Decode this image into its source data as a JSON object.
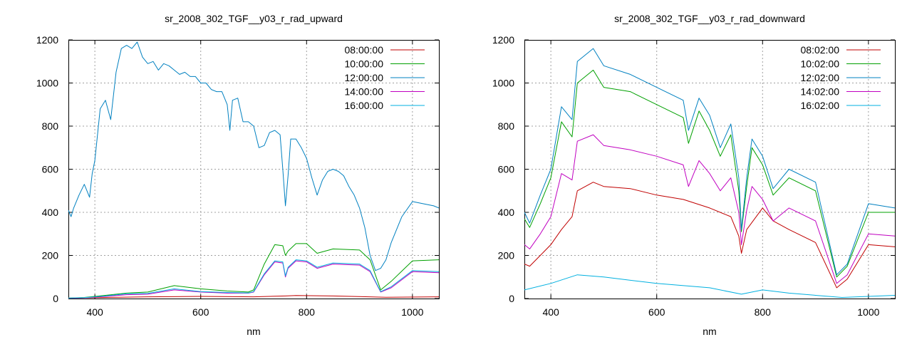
{
  "chart_data": [
    {
      "type": "line",
      "title": "sr_2008_302_TGF__y03_r_rad_upward",
      "xlabel": "nm",
      "ylabel": "",
      "xlim": [
        350,
        1050
      ],
      "ylim": [
        0,
        1200
      ],
      "xticks": [
        400,
        600,
        800,
        1000
      ],
      "yticks": [
        0,
        200,
        400,
        600,
        800,
        1000,
        1200
      ],
      "grid": true,
      "legend_position": "top-right",
      "series": [
        {
          "name": "08:00:00",
          "color": "#c00000",
          "x": [
            350,
            400,
            500,
            600,
            700,
            760,
            780,
            850,
            950,
            1050
          ],
          "y": [
            2,
            4,
            8,
            10,
            8,
            12,
            14,
            12,
            6,
            8
          ]
        },
        {
          "name": "10:00:00",
          "color": "#00a000",
          "x": [
            350,
            380,
            420,
            460,
            500,
            550,
            600,
            650,
            690,
            700,
            720,
            740,
            755,
            760,
            765,
            780,
            800,
            820,
            850,
            900,
            920,
            940,
            960,
            1000,
            1050
          ],
          "y": [
            2,
            5,
            15,
            25,
            30,
            60,
            45,
            35,
            30,
            40,
            160,
            250,
            245,
            200,
            220,
            255,
            255,
            210,
            230,
            225,
            180,
            40,
            80,
            175,
            180
          ]
        },
        {
          "name": "12:00:00",
          "color": "#0080c0",
          "x": [
            350,
            355,
            360,
            370,
            380,
            390,
            395,
            400,
            410,
            420,
            430,
            440,
            450,
            460,
            470,
            480,
            490,
            500,
            510,
            520,
            530,
            540,
            550,
            560,
            570,
            580,
            590,
            600,
            610,
            620,
            630,
            640,
            650,
            655,
            660,
            670,
            680,
            690,
            700,
            710,
            720,
            730,
            740,
            750,
            755,
            760,
            765,
            770,
            780,
            790,
            800,
            810,
            820,
            830,
            840,
            850,
            860,
            870,
            880,
            890,
            900,
            910,
            920,
            930,
            940,
            950,
            960,
            980,
            1000,
            1020,
            1040,
            1050
          ],
          "y": [
            410,
            380,
            420,
            480,
            530,
            470,
            580,
            640,
            880,
            920,
            830,
            1050,
            1160,
            1175,
            1160,
            1190,
            1120,
            1090,
            1100,
            1060,
            1090,
            1080,
            1060,
            1040,
            1050,
            1030,
            1030,
            1000,
            1000,
            970,
            960,
            960,
            900,
            780,
            920,
            930,
            820,
            820,
            800,
            700,
            710,
            770,
            780,
            760,
            600,
            430,
            570,
            740,
            740,
            700,
            650,
            560,
            480,
            550,
            590,
            600,
            590,
            570,
            520,
            480,
            420,
            330,
            200,
            130,
            140,
            180,
            260,
            380,
            450,
            440,
            430,
            420
          ]
        },
        {
          "name": "14:00:00",
          "color": "#c000c0",
          "x": [
            350,
            380,
            420,
            460,
            500,
            550,
            600,
            650,
            690,
            700,
            720,
            740,
            755,
            760,
            765,
            780,
            800,
            820,
            850,
            900,
            920,
            940,
            960,
            1000,
            1050
          ],
          "y": [
            1,
            3,
            10,
            18,
            20,
            40,
            30,
            25,
            25,
            30,
            110,
            170,
            165,
            100,
            140,
            175,
            170,
            140,
            160,
            155,
            125,
            30,
            50,
            125,
            120
          ]
        },
        {
          "name": "16:00:00",
          "color": "#00b0e0",
          "x": [
            350,
            380,
            420,
            460,
            500,
            550,
            600,
            650,
            690,
            700,
            720,
            740,
            755,
            760,
            765,
            780,
            800,
            820,
            850,
            900,
            920,
            940,
            960,
            1000,
            1050
          ],
          "y": [
            2,
            4,
            12,
            22,
            24,
            45,
            32,
            28,
            26,
            32,
            115,
            175,
            170,
            105,
            145,
            180,
            175,
            145,
            165,
            160,
            130,
            32,
            55,
            130,
            125
          ]
        }
      ]
    },
    {
      "type": "line",
      "title": "sr_2008_302_TGF__y03_r_rad_downward",
      "xlabel": "nm",
      "ylabel": "",
      "xlim": [
        350,
        1050
      ],
      "ylim": [
        0,
        1200
      ],
      "xticks": [
        400,
        600,
        800,
        1000
      ],
      "yticks": [
        0,
        200,
        400,
        600,
        800,
        1000,
        1200
      ],
      "grid": true,
      "legend_position": "top-right",
      "series": [
        {
          "name": "08:02:00",
          "color": "#c00000",
          "x": [
            350,
            360,
            380,
            400,
            420,
            440,
            450,
            480,
            500,
            550,
            600,
            650,
            700,
            740,
            755,
            760,
            770,
            800,
            820,
            850,
            900,
            940,
            960,
            1000,
            1050
          ],
          "y": [
            160,
            150,
            200,
            250,
            320,
            380,
            500,
            540,
            520,
            510,
            480,
            460,
            420,
            380,
            290,
            210,
            320,
            420,
            360,
            320,
            260,
            50,
            90,
            250,
            240
          ]
        },
        {
          "name": "10:02:00",
          "color": "#00a000",
          "x": [
            350,
            360,
            380,
            400,
            420,
            440,
            450,
            480,
            500,
            550,
            600,
            650,
            660,
            680,
            700,
            720,
            740,
            755,
            760,
            770,
            780,
            800,
            820,
            850,
            900,
            940,
            960,
            1000,
            1050
          ],
          "y": [
            370,
            330,
            440,
            560,
            820,
            750,
            1000,
            1060,
            980,
            960,
            900,
            840,
            720,
            870,
            780,
            660,
            760,
            500,
            310,
            520,
            700,
            620,
            480,
            560,
            500,
            100,
            150,
            400,
            400
          ]
        },
        {
          "name": "12:02:00",
          "color": "#0080c0",
          "x": [
            350,
            360,
            380,
            400,
            420,
            440,
            450,
            480,
            500,
            550,
            600,
            650,
            660,
            680,
            700,
            720,
            740,
            755,
            760,
            770,
            780,
            800,
            820,
            850,
            900,
            940,
            960,
            1000,
            1050
          ],
          "y": [
            400,
            350,
            480,
            600,
            890,
            830,
            1100,
            1160,
            1080,
            1040,
            980,
            920,
            780,
            930,
            850,
            700,
            810,
            560,
            320,
            560,
            740,
            660,
            510,
            600,
            540,
            110,
            160,
            440,
            420
          ]
        },
        {
          "name": "14:02:00",
          "color": "#c000c0",
          "x": [
            350,
            360,
            380,
            400,
            420,
            440,
            450,
            480,
            500,
            550,
            600,
            650,
            660,
            680,
            700,
            720,
            740,
            755,
            760,
            770,
            780,
            800,
            820,
            850,
            900,
            940,
            960,
            1000,
            1050
          ],
          "y": [
            250,
            230,
            300,
            380,
            580,
            550,
            730,
            760,
            710,
            690,
            660,
            620,
            520,
            640,
            580,
            500,
            560,
            400,
            250,
            410,
            520,
            460,
            360,
            420,
            360,
            70,
            110,
            300,
            290
          ]
        },
        {
          "name": "16:02:00",
          "color": "#00b0e0",
          "x": [
            350,
            400,
            450,
            500,
            600,
            700,
            760,
            800,
            850,
            950,
            1050
          ],
          "y": [
            40,
            70,
            110,
            100,
            70,
            50,
            20,
            40,
            25,
            5,
            15
          ]
        }
      ]
    }
  ]
}
